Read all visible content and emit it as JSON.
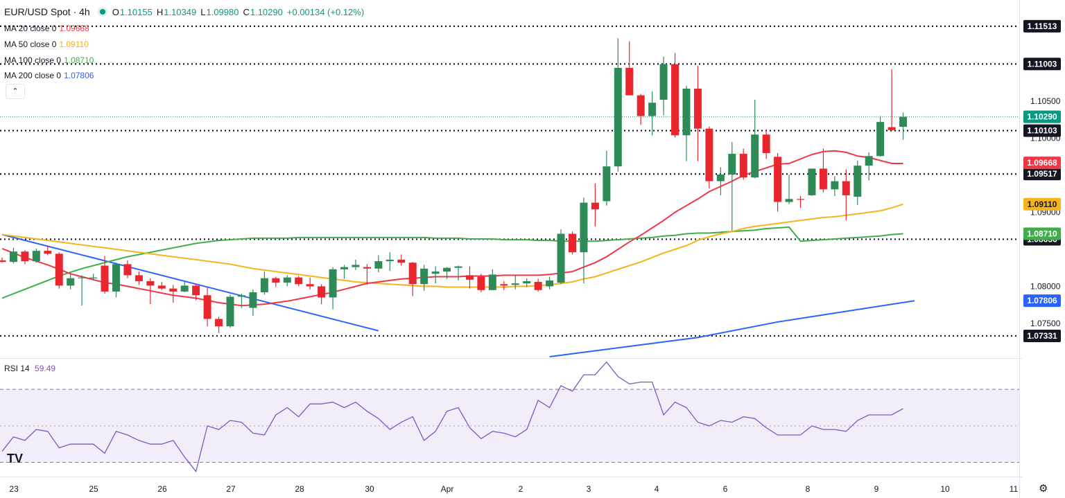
{
  "header": {
    "symbol": "EUR/USD Spot · 4h",
    "o_label": "O",
    "o": "1.10155",
    "h_label": "H",
    "h": "1.10349",
    "l_label": "L",
    "l": "1.09980",
    "c_label": "C",
    "c": "1.10290",
    "change": "+0.00134 (+0.12%)"
  },
  "indicators": [
    {
      "label": "MA 20 close 0",
      "value": "1.09668",
      "color": "#f23645"
    },
    {
      "label": "MA 50 close 0",
      "value": "1.09110",
      "color": "#f5b31c"
    },
    {
      "label": "MA 100 close 0",
      "value": "1.08710",
      "color": "#3fae4a"
    },
    {
      "label": "MA 200 close 0",
      "value": "1.07806",
      "color": "#2962ff"
    }
  ],
  "collapse_icon": "chevron-up-icon",
  "rsi": {
    "label": "RSI 14",
    "value": "59.49",
    "color": "#7e57c2"
  },
  "logo": "TV",
  "settings_icon": "gear-icon",
  "chart_data": {
    "type": "candlestick",
    "symbol": "EUR/USD Spot",
    "timeframe": "4h",
    "ylim": [
      1.0705,
      1.1168
    ],
    "price_ticks": [
      "1.10500",
      "1.10000",
      "1.09000",
      "1.08000",
      "1.07500"
    ],
    "x_ticks": [
      "23",
      "25",
      "26",
      "27",
      "28",
      "30",
      "Apr",
      "2",
      "3",
      "4",
      "6",
      "8",
      "9",
      "10",
      "11"
    ],
    "horizontal_levels": [
      {
        "value": "1.11513",
        "color": "#131722"
      },
      {
        "value": "1.11003",
        "color": "#131722"
      },
      {
        "value": "1.10103",
        "color": "#131722"
      },
      {
        "value": "1.09517",
        "color": "#131722"
      },
      {
        "value": "1.08636",
        "color": "#131722"
      },
      {
        "value": "1.07331",
        "color": "#131722"
      }
    ],
    "price_labels": [
      {
        "value": "1.10290",
        "color": "#089981"
      },
      {
        "value": "1.09668",
        "color": "#f23645"
      },
      {
        "value": "1.09110",
        "color": "#f5b31c"
      },
      {
        "value": "1.08710",
        "color": "#3fae4a"
      },
      {
        "value": "1.07806",
        "color": "#2962ff"
      }
    ],
    "trendline": {
      "start": [
        0,
        1.087
      ],
      "end": [
        33,
        1.074
      ],
      "color": "#2962ff"
    },
    "candles": [
      [
        1.0835,
        1.0839,
        1.0832,
        1.0833
      ],
      [
        1.0833,
        1.0852,
        1.0831,
        1.0847
      ],
      [
        1.0847,
        1.0849,
        1.083,
        1.0834
      ],
      [
        1.0834,
        1.0851,
        1.0832,
        1.0848
      ],
      [
        1.0848,
        1.0855,
        1.0842,
        1.0844
      ],
      [
        1.0844,
        1.0846,
        1.0797,
        1.0801
      ],
      [
        1.0801,
        1.0818,
        1.0796,
        1.0811
      ],
      [
        1.0811,
        1.0815,
        1.0774,
        1.0812
      ],
      [
        1.0812,
        1.0817,
        1.0808,
        1.0812
      ],
      [
        1.0828,
        1.0841,
        1.079,
        1.0793
      ],
      [
        1.0793,
        1.0832,
        1.0785,
        1.083
      ],
      [
        1.083,
        1.0835,
        1.0811,
        1.0815
      ],
      [
        1.0815,
        1.082,
        1.0802,
        1.0807
      ],
      [
        1.0807,
        1.0811,
        1.0776,
        1.0801
      ],
      [
        1.0801,
        1.0806,
        1.0795,
        1.0797
      ],
      [
        1.0797,
        1.0802,
        1.0778,
        1.0793
      ],
      [
        1.0793,
        1.0806,
        1.0792,
        1.0801
      ],
      [
        1.0801,
        1.0803,
        1.0781,
        1.0788
      ],
      [
        1.0788,
        1.0798,
        1.0746,
        1.0756
      ],
      [
        1.0756,
        1.0759,
        1.0737,
        1.0746
      ],
      [
        1.0746,
        1.0789,
        1.0744,
        1.0786
      ],
      [
        1.0786,
        1.079,
        1.0771,
        1.0788
      ],
      [
        1.0771,
        1.0796,
        1.076,
        1.0792
      ],
      [
        1.0792,
        1.082,
        1.0789,
        1.0811
      ],
      [
        1.0811,
        1.0813,
        1.0799,
        1.0805
      ],
      [
        1.0805,
        1.0815,
        1.08,
        1.0812
      ],
      [
        1.0812,
        1.0814,
        1.08,
        1.0803
      ],
      [
        1.0803,
        1.0812,
        1.0796,
        1.08
      ],
      [
        1.08,
        1.0803,
        1.0776,
        1.0785
      ],
      [
        1.0785,
        1.0826,
        1.0769,
        1.0823
      ],
      [
        1.0823,
        1.0829,
        1.081,
        1.0826
      ],
      [
        1.0826,
        1.0836,
        1.0822,
        1.0829
      ],
      [
        1.0826,
        1.083,
        1.0802,
        1.0824
      ],
      [
        1.0824,
        1.0842,
        1.0819,
        1.0834
      ],
      [
        1.0834,
        1.0846,
        1.0821,
        1.0836
      ],
      [
        1.0836,
        1.0843,
        1.0828,
        1.0832
      ],
      [
        1.0832,
        1.0833,
        1.0787,
        1.0803
      ],
      [
        1.0803,
        1.0829,
        1.0794,
        1.0824
      ],
      [
        1.0817,
        1.0827,
        1.0804,
        1.082
      ],
      [
        1.082,
        1.0826,
        1.081,
        1.0825
      ],
      [
        1.0825,
        1.0828,
        1.0808,
        1.0827
      ],
      [
        1.0815,
        1.0827,
        1.0797,
        1.0809
      ],
      [
        1.0813,
        1.0817,
        1.0792,
        1.0795
      ],
      [
        1.0795,
        1.0823,
        1.0795,
        1.0816
      ],
      [
        1.0803,
        1.0807,
        1.0795,
        1.0801
      ],
      [
        1.0802,
        1.0815,
        1.0796,
        1.0804
      ],
      [
        1.0804,
        1.0811,
        1.0799,
        1.0807
      ],
      [
        1.0806,
        1.081,
        1.0793,
        1.0795
      ],
      [
        1.08,
        1.0813,
        1.0796,
        1.0808
      ],
      [
        1.0805,
        1.0877,
        1.0803,
        1.0871
      ],
      [
        1.0871,
        1.0874,
        1.0843,
        1.0846
      ],
      [
        1.0846,
        1.092,
        1.0804,
        1.0913
      ],
      [
        1.0913,
        1.0939,
        1.0881,
        1.0904
      ],
      [
        1.0915,
        1.0983,
        1.0909,
        1.0962
      ],
      [
        1.0962,
        1.1135,
        1.0955,
        1.1095
      ],
      [
        1.1095,
        1.1131,
        1.106,
        1.1058
      ],
      [
        1.1058,
        1.106,
        1.1018,
        1.103
      ],
      [
        1.103,
        1.1063,
        1.1004,
        1.1048
      ],
      [
        1.1052,
        1.111,
        1.1031,
        1.11
      ],
      [
        1.11,
        1.1115,
        1.1001,
        1.1004
      ],
      [
        1.1004,
        1.1071,
        1.0969,
        1.1067
      ],
      [
        1.1067,
        1.1098,
        1.0969,
        1.1013
      ],
      [
        1.1013,
        1.1016,
        1.0932,
        1.0942
      ],
      [
        1.0942,
        1.0961,
        1.0923,
        1.0951
      ],
      [
        1.0951,
        1.0995,
        1.0875,
        1.0979
      ],
      [
        1.0979,
        1.0986,
        1.0944,
        1.0947
      ],
      [
        1.0947,
        1.1052,
        1.0946,
        1.1005
      ],
      [
        1.1005,
        1.1012,
        1.0972,
        1.098
      ],
      [
        1.0975,
        1.098,
        1.0901,
        1.0914
      ],
      [
        1.0914,
        1.0951,
        1.0911,
        1.0918
      ],
      [
        1.0918,
        1.0922,
        1.0906,
        1.0917
      ],
      [
        1.0923,
        1.0959,
        1.0922,
        1.0959
      ],
      [
        1.0959,
        1.0986,
        1.0927,
        1.0931
      ],
      [
        1.0931,
        1.0949,
        1.0922,
        1.0942
      ],
      [
        1.0942,
        1.0958,
        1.0889,
        1.0923
      ],
      [
        1.0921,
        1.097,
        1.091,
        1.0963
      ],
      [
        1.0963,
        1.0981,
        1.0943,
        1.0976
      ],
      [
        1.0976,
        1.103,
        1.0975,
        1.1022
      ],
      [
        1.1015,
        1.1093,
        1.101,
        1.1011
      ],
      [
        1.10155,
        1.10349,
        1.0998,
        1.1029
      ]
    ],
    "ma20": [
      1.0851,
      1.0845,
      1.0839,
      1.0834,
      1.0829,
      1.0823,
      1.0817,
      1.0813,
      1.0809,
      1.0805,
      1.0803,
      1.08,
      1.0797,
      1.0794,
      1.0791,
      1.0788,
      1.0786,
      1.0784,
      1.0781,
      1.0778,
      1.0776,
      1.0774,
      1.0775,
      1.0776,
      1.0778,
      1.078,
      1.0783,
      1.0786,
      1.0789,
      1.0792,
      1.0796,
      1.08,
      1.0804,
      1.0806,
      1.0808,
      1.081,
      1.0811,
      1.0812,
      1.0813,
      1.0813,
      1.0813,
      1.0814,
      1.0814,
      1.0814,
      1.0815,
      1.0815,
      1.0815,
      1.0815,
      1.0816,
      1.0818,
      1.082,
      1.0826,
      1.0832,
      1.084,
      1.085,
      1.086,
      1.0869,
      1.0879,
      1.0889,
      1.09,
      1.0909,
      1.0918,
      1.0928,
      1.0935,
      1.0942,
      1.095,
      1.0955,
      1.096,
      1.0965,
      1.0966,
      1.0972,
      1.0978,
      1.0982,
      1.0983,
      1.0981,
      1.0976,
      1.0974,
      1.097,
      1.0966,
      1.0966
    ],
    "ma50": [
      1.087,
      1.0868,
      1.0866,
      1.0864,
      1.0862,
      1.086,
      1.0858,
      1.0856,
      1.0854,
      1.0852,
      1.085,
      1.0848,
      1.0846,
      1.0844,
      1.0842,
      1.084,
      1.0838,
      1.0836,
      1.0834,
      1.0832,
      1.083,
      1.0827,
      1.0824,
      1.0822,
      1.082,
      1.0818,
      1.0816,
      1.0814,
      1.0812,
      1.081,
      1.0808,
      1.0806,
      1.0805,
      1.0804,
      1.0803,
      1.0802,
      1.0801,
      1.08,
      1.08,
      1.0799,
      1.0799,
      1.0799,
      1.0799,
      1.0799,
      1.0799,
      1.08,
      1.08,
      1.0801,
      1.0802,
      1.0804,
      1.0806,
      1.081,
      1.0813,
      1.0818,
      1.0823,
      1.0828,
      1.0833,
      1.0839,
      1.0845,
      1.085,
      1.0855,
      1.0862,
      1.0867,
      1.0871,
      1.0874,
      1.0878,
      1.0881,
      1.0883,
      1.0885,
      1.0887,
      1.0889,
      1.0891,
      1.0893,
      1.0894,
      1.0896,
      1.0898,
      1.09,
      1.0902,
      1.0906,
      1.0911
    ],
    "ma100": [
      1.0784,
      1.079,
      1.0796,
      1.0802,
      1.0808,
      1.0814,
      1.0819,
      1.0824,
      1.0828,
      1.0832,
      1.0836,
      1.084,
      1.0843,
      1.0846,
      1.0849,
      1.0852,
      1.0855,
      1.0858,
      1.086,
      1.0862,
      1.0863,
      1.0864,
      1.0865,
      1.0865,
      1.0865,
      1.0865,
      1.0866,
      1.0866,
      1.0866,
      1.0866,
      1.0866,
      1.0866,
      1.0866,
      1.0866,
      1.0866,
      1.0866,
      1.0866,
      1.0866,
      1.0865,
      1.0865,
      1.0865,
      1.0864,
      1.0864,
      1.0864,
      1.0863,
      1.0863,
      1.0863,
      1.0862,
      1.0862,
      1.0861,
      1.0861,
      1.0861,
      1.0861,
      1.0862,
      1.0863,
      1.0864,
      1.0865,
      1.0866,
      1.0868,
      1.0869,
      1.0871,
      1.0872,
      1.0872,
      1.0873,
      1.0874,
      1.0875,
      1.0876,
      1.0878,
      1.0879,
      1.088,
      1.0861,
      1.0862,
      1.0863,
      1.0864,
      1.0865,
      1.0866,
      1.0867,
      1.0868,
      1.087,
      1.0871
    ],
    "ma200_points": [
      [
        48,
        1.0705
      ],
      [
        61,
        1.0731
      ],
      [
        68,
        1.0752
      ],
      [
        80,
        1.07806
      ]
    ],
    "rsi": {
      "ylim": [
        23,
        86
      ],
      "upper_band": 70,
      "lower_band": 30,
      "ticks": [
        "80.00",
        "40.00"
      ],
      "values": [
        36,
        44,
        42,
        48,
        47,
        38,
        40,
        40,
        40,
        35,
        47,
        45,
        42,
        40,
        40,
        42,
        33,
        25,
        50,
        48,
        53,
        52,
        46,
        45,
        56,
        60,
        55,
        62,
        62,
        63,
        60,
        63,
        58,
        54,
        48,
        52,
        55,
        42,
        47,
        58,
        60,
        49,
        43,
        47,
        46,
        44,
        48,
        64,
        60,
        72,
        69,
        78,
        78,
        85,
        77,
        73,
        74,
        74,
        56,
        63,
        60,
        52,
        50,
        53,
        52,
        55,
        54,
        49,
        45,
        45,
        45,
        50,
        48,
        48,
        47,
        53,
        56,
        56,
        56,
        59.49
      ]
    }
  }
}
